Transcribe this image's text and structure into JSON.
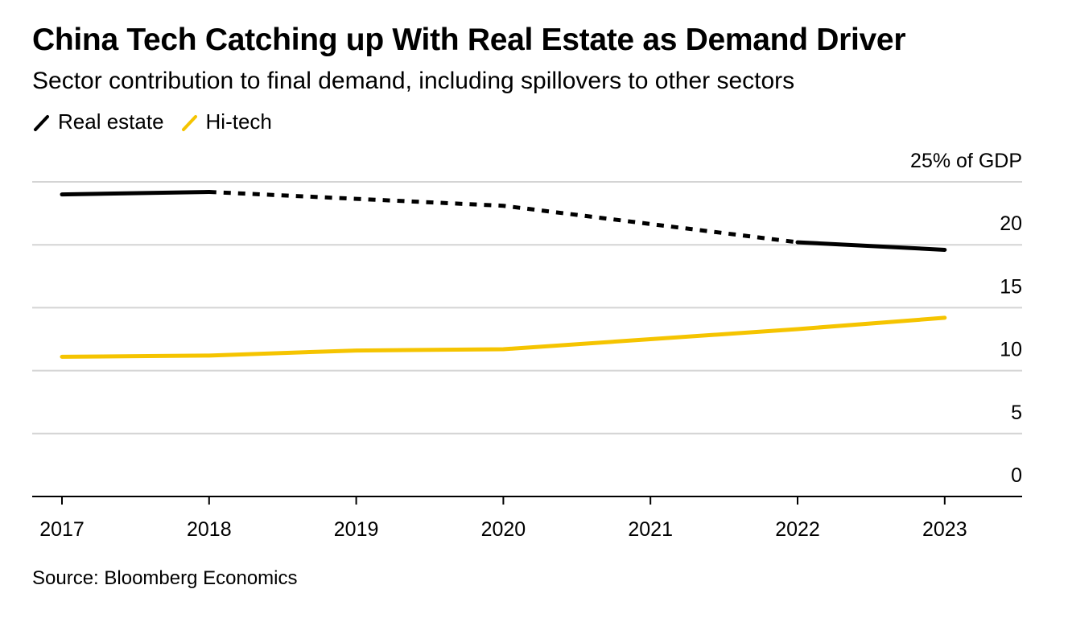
{
  "title": "China Tech Catching up With Real Estate as Demand Driver",
  "subtitle": "Sector contribution to final demand, including spillovers to other sectors",
  "source": "Source: Bloomberg Economics",
  "legend": [
    {
      "label": "Real estate",
      "color": "#000000"
    },
    {
      "label": "Hi-tech",
      "color": "#f5c400"
    }
  ],
  "chart_data": {
    "type": "line",
    "x": [
      "2017",
      "2018",
      "2019",
      "2020",
      "2021",
      "2022",
      "2023"
    ],
    "ylim": [
      0,
      25
    ],
    "y_ticks": [
      "25% of GDP",
      "20",
      "15",
      "10",
      "5",
      "0"
    ],
    "y_tick_values": [
      25,
      20,
      15,
      10,
      5,
      0
    ],
    "grid": true,
    "y_axis_position": "right",
    "legend_position": "top-left",
    "series": [
      {
        "name": "Real estate",
        "color": "#000000",
        "values": [
          24.0,
          24.2,
          null,
          23.1,
          null,
          20.2,
          19.6
        ],
        "note_dashed_between": [
          "2018",
          "2022"
        ]
      },
      {
        "name": "Hi-tech",
        "color": "#f5c400",
        "values": [
          11.1,
          11.2,
          11.6,
          11.7,
          12.5,
          13.3,
          14.2
        ]
      }
    ]
  }
}
